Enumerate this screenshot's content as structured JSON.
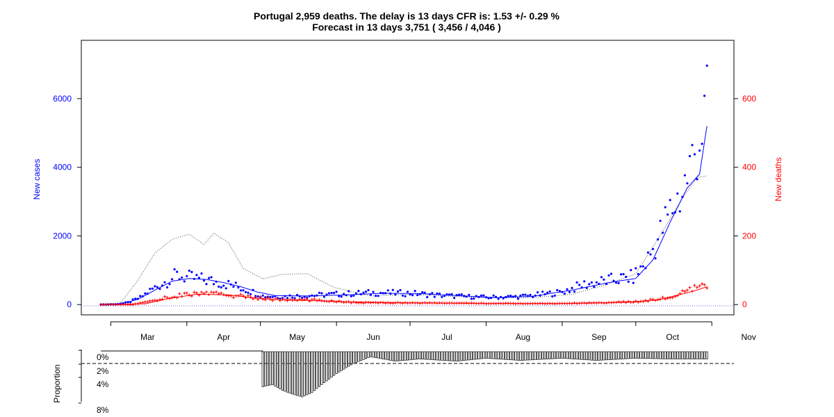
{
  "chart_data": [
    {
      "type": "line",
      "title": "Portugal 2,959 deaths. The delay is 13 days CFR is: 1.53 +/- 0.29 %",
      "subtitle": "Forecast in 13 days 3,751 ( 3,456 / 4,046 )",
      "ylabel_left": "New cases",
      "ylabel_right": "New deaths",
      "x_start": "2020-02-26",
      "x_end": "2020-10-30",
      "xlim": [
        "2020-02-18",
        "2020-11-10"
      ],
      "ylim_left": [
        -300,
        7700
      ],
      "ylim_right": [
        -30,
        770
      ],
      "x_ticks": [
        {
          "label": "Mar",
          "date": "2020-03-16"
        },
        {
          "label": "Apr",
          "date": "2020-04-16"
        },
        {
          "label": "May",
          "date": "2020-05-16"
        },
        {
          "label": "Jun",
          "date": "2020-06-16"
        },
        {
          "label": "Jul",
          "date": "2020-07-16"
        },
        {
          "label": "Aug",
          "date": "2020-08-16"
        },
        {
          "label": "Sep",
          "date": "2020-09-16"
        },
        {
          "label": "Oct",
          "date": "2020-10-16"
        },
        {
          "label": "Nov",
          "date": "2020-11-16"
        }
      ],
      "y_ticks_left": [
        "0",
        "2000",
        "4000",
        "6000"
      ],
      "y_ticks_right": [
        "0",
        "200",
        "400",
        "600"
      ],
      "colors": {
        "cases": "#0000ff",
        "deaths": "#ff0000",
        "forecast": "#444444"
      },
      "series": [
        {
          "name": "New cases",
          "style": "points",
          "anchors": [
            [
              "2020-02-26",
              0
            ],
            [
              "2020-03-03",
              5
            ],
            [
              "2020-03-08",
              60
            ],
            [
              "2020-03-13",
              200
            ],
            [
              "2020-03-18",
              450
            ],
            [
              "2020-03-23",
              650
            ],
            [
              "2020-03-28",
              850
            ],
            [
              "2020-04-02",
              780
            ],
            [
              "2020-04-08",
              720
            ],
            [
              "2020-04-14",
              650
            ],
            [
              "2020-04-20",
              550
            ],
            [
              "2020-04-26",
              420
            ],
            [
              "2020-05-02",
              250
            ],
            [
              "2020-05-10",
              230
            ],
            [
              "2020-05-20",
              260
            ],
            [
              "2020-06-01",
              300
            ],
            [
              "2020-06-15",
              340
            ],
            [
              "2020-07-01",
              330
            ],
            [
              "2020-07-15",
              260
            ],
            [
              "2020-08-01",
              210
            ],
            [
              "2020-08-15",
              230
            ],
            [
              "2020-08-31",
              350
            ],
            [
              "2020-09-10",
              580
            ],
            [
              "2020-09-20",
              700
            ],
            [
              "2020-09-30",
              800
            ],
            [
              "2020-10-05",
              1200
            ],
            [
              "2020-10-10",
              1900
            ],
            [
              "2020-10-15",
              2700
            ],
            [
              "2020-10-20",
              3300
            ],
            [
              "2020-10-25",
              4400
            ],
            [
              "2020-10-30",
              5600
            ]
          ]
        },
        {
          "name": "New cases (smoothed)",
          "style": "line",
          "anchors": [
            [
              "2020-02-26",
              0
            ],
            [
              "2020-03-05",
              10
            ],
            [
              "2020-03-12",
              150
            ],
            [
              "2020-03-19",
              420
            ],
            [
              "2020-03-26",
              680
            ],
            [
              "2020-04-02",
              760
            ],
            [
              "2020-04-09",
              730
            ],
            [
              "2020-04-16",
              640
            ],
            [
              "2020-04-23",
              520
            ],
            [
              "2020-04-30",
              360
            ],
            [
              "2020-05-07",
              260
            ],
            [
              "2020-05-20",
              250
            ],
            [
              "2020-06-05",
              280
            ],
            [
              "2020-06-20",
              330
            ],
            [
              "2020-07-05",
              320
            ],
            [
              "2020-07-20",
              260
            ],
            [
              "2020-08-05",
              200
            ],
            [
              "2020-08-20",
              240
            ],
            [
              "2020-09-05",
              420
            ],
            [
              "2020-09-20",
              640
            ],
            [
              "2020-10-01",
              760
            ],
            [
              "2020-10-08",
              1300
            ],
            [
              "2020-10-15",
              2400
            ],
            [
              "2020-10-22",
              3400
            ],
            [
              "2020-10-27",
              3800
            ],
            [
              "2020-10-30",
              5200
            ]
          ]
        },
        {
          "name": "Forecast",
          "style": "dotted",
          "anchors": [
            [
              "2020-02-26",
              0
            ],
            [
              "2020-03-05",
              50
            ],
            [
              "2020-03-12",
              700
            ],
            [
              "2020-03-19",
              1500
            ],
            [
              "2020-03-26",
              1900
            ],
            [
              "2020-04-02",
              2050
            ],
            [
              "2020-04-08",
              1750
            ],
            [
              "2020-04-12",
              2080
            ],
            [
              "2020-04-18",
              1800
            ],
            [
              "2020-04-24",
              1050
            ],
            [
              "2020-05-02",
              750
            ],
            [
              "2020-05-10",
              880
            ],
            [
              "2020-05-20",
              900
            ],
            [
              "2020-05-31",
              500
            ],
            [
              "2020-06-15",
              250
            ],
            [
              "2020-07-01",
              300
            ],
            [
              "2020-07-15",
              250
            ],
            [
              "2020-08-01",
              200
            ],
            [
              "2020-08-20",
              200
            ],
            [
              "2020-09-05",
              300
            ],
            [
              "2020-09-20",
              600
            ],
            [
              "2020-10-01",
              900
            ],
            [
              "2020-10-10",
              1900
            ],
            [
              "2020-10-20",
              3100
            ],
            [
              "2020-10-26",
              3700
            ],
            [
              "2020-10-30",
              3751
            ]
          ]
        },
        {
          "name": "New deaths",
          "style": "cross",
          "axis": "right",
          "anchors": [
            [
              "2020-02-26",
              0
            ],
            [
              "2020-03-10",
              0
            ],
            [
              "2020-03-20",
              15
            ],
            [
              "2020-03-30",
              28
            ],
            [
              "2020-04-08",
              33
            ],
            [
              "2020-04-18",
              28
            ],
            [
              "2020-04-28",
              20
            ],
            [
              "2020-05-10",
              13
            ],
            [
              "2020-05-25",
              13
            ],
            [
              "2020-06-10",
              5
            ],
            [
              "2020-07-01",
              5
            ],
            [
              "2020-07-20",
              4
            ],
            [
              "2020-08-10",
              3
            ],
            [
              "2020-08-31",
              3
            ],
            [
              "2020-09-15",
              5
            ],
            [
              "2020-10-01",
              8
            ],
            [
              "2020-10-15",
              20
            ],
            [
              "2020-10-25",
              45
            ],
            [
              "2020-10-30",
              55
            ]
          ]
        },
        {
          "name": "New deaths (smoothed)",
          "style": "line",
          "axis": "right",
          "anchors": [
            [
              "2020-02-26",
              0
            ],
            [
              "2020-03-15",
              2
            ],
            [
              "2020-03-25",
              18
            ],
            [
              "2020-04-05",
              30
            ],
            [
              "2020-04-18",
              28
            ],
            [
              "2020-04-30",
              18
            ],
            [
              "2020-05-15",
              13
            ],
            [
              "2020-06-05",
              8
            ],
            [
              "2020-07-01",
              5
            ],
            [
              "2020-08-01",
              3
            ],
            [
              "2020-09-01",
              3
            ],
            [
              "2020-09-25",
              6
            ],
            [
              "2020-10-10",
              13
            ],
            [
              "2020-10-25",
              40
            ],
            [
              "2020-10-30",
              52
            ]
          ]
        }
      ]
    },
    {
      "type": "bar",
      "ylabel": "Proportion",
      "y_ticks": [
        "0%",
        "2%",
        "4%",
        "8%"
      ],
      "reference_line": 0.02,
      "values_start": "2020-05-02",
      "values_end": "2020-10-30",
      "anchors": [
        [
          "2020-05-02",
          0.048
        ],
        [
          "2020-05-06",
          0.045
        ],
        [
          "2020-05-10",
          0.053
        ],
        [
          "2020-05-14",
          0.058
        ],
        [
          "2020-05-18",
          0.062
        ],
        [
          "2020-05-22",
          0.056
        ],
        [
          "2020-05-26",
          0.045
        ],
        [
          "2020-06-01",
          0.03
        ],
        [
          "2020-06-08",
          0.016
        ],
        [
          "2020-06-15",
          0.007
        ],
        [
          "2020-06-25",
          0.013
        ],
        [
          "2020-07-05",
          0.01
        ],
        [
          "2020-07-20",
          0.013
        ],
        [
          "2020-08-01",
          0.009
        ],
        [
          "2020-08-15",
          0.012
        ],
        [
          "2020-09-01",
          0.009
        ],
        [
          "2020-09-15",
          0.012
        ],
        [
          "2020-10-01",
          0.009
        ],
        [
          "2020-10-15",
          0.01
        ],
        [
          "2020-10-30",
          0.01
        ]
      ],
      "pre_range_line": [
        "2020-02-26",
        "2020-05-02"
      ]
    }
  ]
}
